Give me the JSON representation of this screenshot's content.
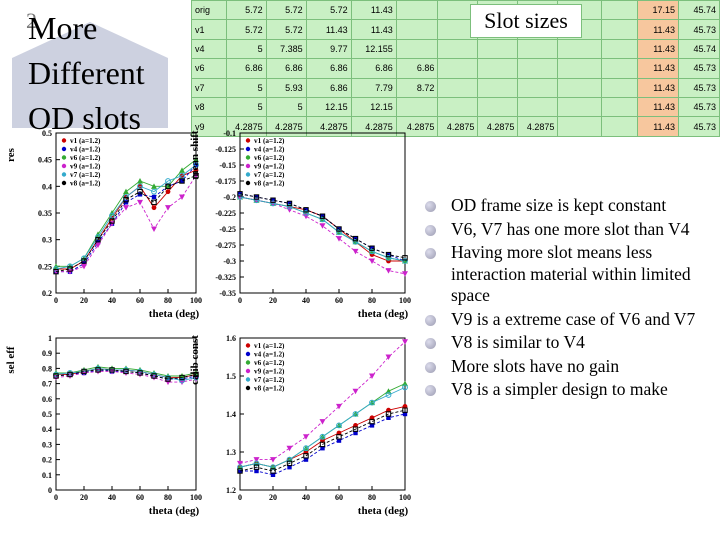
{
  "slide": {
    "number": "2",
    "title": "More Different OD slots"
  },
  "table": {
    "overlay_label": "Slot sizes",
    "rows": [
      {
        "name": "orig",
        "cells": [
          "5.72",
          "5.72",
          "5.72",
          "11.43",
          "",
          "",
          "",
          "",
          "",
          "",
          "17.15",
          "45.74"
        ]
      },
      {
        "name": "v1",
        "cells": [
          "5.72",
          "5.72",
          "11.43",
          "11.43",
          "",
          "",
          "",
          "",
          "",
          "",
          "11.43",
          "45.73"
        ]
      },
      {
        "name": "v4",
        "cells": [
          "5",
          "7.385",
          "9.77",
          "12.155",
          "",
          "",
          "",
          "",
          "",
          "",
          "11.43",
          "45.74"
        ]
      },
      {
        "name": "v6",
        "cells": [
          "6.86",
          "6.86",
          "6.86",
          "6.86",
          "6.86",
          "",
          "",
          "",
          "",
          "",
          "11.43",
          "45.73"
        ]
      },
      {
        "name": "v7",
        "cells": [
          "5",
          "5.93",
          "6.86",
          "7.79",
          "8.72",
          "",
          "",
          "",
          "",
          "",
          "11.43",
          "45.73"
        ]
      },
      {
        "name": "v8",
        "cells": [
          "5",
          "5",
          "12.15",
          "12.15",
          "",
          "",
          "",
          "",
          "",
          "",
          "11.43",
          "45.73"
        ]
      },
      {
        "name": "v9",
        "cells": [
          "4.2875",
          "4.2875",
          "4.2875",
          "4.2875",
          "4.2875",
          "4.2875",
          "4.2875",
          "4.2875",
          "",
          "",
          "11.43",
          "45.73"
        ]
      }
    ]
  },
  "bullets": [
    "OD frame size is kept constant",
    "V6, V7 has one more slot than V4",
    "Having more slot means less interaction material within limited space",
    "V9 is a extreme case of V6 and V7",
    "V8 is similar to V4",
    "More slots have no gain",
    "V8 is a simpler design to make"
  ],
  "legend": [
    "v1 (a=1.2)",
    "v4 (a=1.2)",
    "v6 (a=1.2)",
    "v9 (a=1.2)",
    "v7 (a=1.2)",
    "v8 (a=1.2)"
  ],
  "colors": {
    "v1": "#cc0000",
    "v4": "#0000cc",
    "v6": "#33aa33",
    "v9": "#cc22cc",
    "v7": "#33aacc",
    "v8": "#000000",
    "table_bg": "#c9f0c4",
    "table_hl": "#f7c79e"
  },
  "chart_data": [
    {
      "type": "line",
      "ylabel": "res",
      "xlabel": "theta (deg)",
      "ylim": [
        0.2,
        0.5
      ],
      "yticks": [
        "0.2",
        "0.25",
        "0.3",
        "0.35",
        "0.4",
        "0.45",
        "0.5"
      ],
      "xticks": [
        "0",
        "20",
        "40",
        "60",
        "80",
        "100"
      ],
      "x": [
        0,
        10,
        20,
        30,
        40,
        50,
        60,
        70,
        80,
        90,
        100
      ],
      "series": [
        {
          "name": "v1 (a=1.2)",
          "values": [
            0.245,
            0.245,
            0.26,
            0.3,
            0.34,
            0.38,
            0.4,
            0.36,
            0.39,
            0.42,
            0.43
          ]
        },
        {
          "name": "v4 (a=1.2)",
          "values": [
            0.24,
            0.24,
            0.255,
            0.295,
            0.33,
            0.37,
            0.385,
            0.38,
            0.4,
            0.41,
            0.44
          ]
        },
        {
          "name": "v6 (a=1.2)",
          "values": [
            0.25,
            0.25,
            0.265,
            0.31,
            0.35,
            0.39,
            0.41,
            0.4,
            0.4,
            0.43,
            0.45
          ]
        },
        {
          "name": "v9 (a=1.2)",
          "values": [
            0.24,
            0.24,
            0.25,
            0.29,
            0.33,
            0.36,
            0.37,
            0.32,
            0.36,
            0.38,
            0.42
          ]
        },
        {
          "name": "v7 (a=1.2)",
          "values": [
            0.245,
            0.25,
            0.265,
            0.305,
            0.345,
            0.38,
            0.4,
            0.39,
            0.41,
            0.42,
            0.44
          ]
        },
        {
          "name": "v8 (a=1.2)",
          "values": [
            0.24,
            0.245,
            0.26,
            0.3,
            0.335,
            0.375,
            0.39,
            0.37,
            0.4,
            0.41,
            0.42
          ]
        }
      ]
    },
    {
      "type": "line",
      "ylabel": "mean shift",
      "xlabel": "theta (deg)",
      "ylim": [
        -0.35,
        -0.1
      ],
      "yticks": [
        "-0.1",
        "-0.125",
        "-0.15",
        "-0.175",
        "-0.2",
        "-0.225",
        "-0.25",
        "-0.275",
        "-0.3",
        "-0.325",
        "-0.35"
      ],
      "xticks": [
        "0",
        "20",
        "40",
        "60",
        "80",
        "100"
      ],
      "x": [
        0,
        10,
        20,
        30,
        40,
        50,
        60,
        70,
        80,
        90,
        100
      ],
      "series": [
        {
          "name": "v1 (a=1.2)",
          "values": [
            -0.2,
            -0.205,
            -0.21,
            -0.215,
            -0.22,
            -0.23,
            -0.25,
            -0.27,
            -0.29,
            -0.3,
            -0.3
          ]
        },
        {
          "name": "v4 (a=1.2)",
          "values": [
            -0.195,
            -0.2,
            -0.205,
            -0.21,
            -0.22,
            -0.23,
            -0.25,
            -0.265,
            -0.28,
            -0.29,
            -0.3
          ]
        },
        {
          "name": "v6 (a=1.2)",
          "values": [
            -0.2,
            -0.205,
            -0.21,
            -0.215,
            -0.225,
            -0.235,
            -0.255,
            -0.27,
            -0.285,
            -0.295,
            -0.3
          ]
        },
        {
          "name": "v9 (a=1.2)",
          "values": [
            -0.2,
            -0.205,
            -0.21,
            -0.22,
            -0.23,
            -0.245,
            -0.265,
            -0.285,
            -0.3,
            -0.315,
            -0.32
          ]
        },
        {
          "name": "v7 (a=1.2)",
          "values": [
            -0.2,
            -0.205,
            -0.21,
            -0.215,
            -0.225,
            -0.235,
            -0.255,
            -0.27,
            -0.285,
            -0.295,
            -0.3
          ]
        },
        {
          "name": "v8 (a=1.2)",
          "values": [
            -0.195,
            -0.2,
            -0.205,
            -0.21,
            -0.22,
            -0.23,
            -0.25,
            -0.265,
            -0.28,
            -0.29,
            -0.295
          ]
        }
      ]
    },
    {
      "type": "line",
      "ylabel": "sel eff",
      "xlabel": "theta (deg)",
      "ylim": [
        0,
        1
      ],
      "yticks": [
        "0",
        "0.1",
        "0.2",
        "0.3",
        "0.4",
        "0.5",
        "0.6",
        "0.7",
        "0.8",
        "0.9",
        "1"
      ],
      "xticks": [
        "0",
        "20",
        "40",
        "60",
        "80",
        "100"
      ],
      "x": [
        0,
        10,
        20,
        30,
        40,
        50,
        60,
        70,
        80,
        90,
        100
      ],
      "series": [
        {
          "name": "v1 (a=1.2)",
          "values": [
            0.76,
            0.76,
            0.78,
            0.8,
            0.79,
            0.79,
            0.78,
            0.76,
            0.74,
            0.74,
            0.76
          ]
        },
        {
          "name": "v4 (a=1.2)",
          "values": [
            0.75,
            0.76,
            0.77,
            0.79,
            0.78,
            0.78,
            0.77,
            0.75,
            0.73,
            0.73,
            0.75
          ]
        },
        {
          "name": "v6 (a=1.2)",
          "values": [
            0.77,
            0.77,
            0.79,
            0.81,
            0.8,
            0.8,
            0.79,
            0.77,
            0.75,
            0.75,
            0.77
          ]
        },
        {
          "name": "v9 (a=1.2)",
          "values": [
            0.74,
            0.75,
            0.77,
            0.78,
            0.78,
            0.77,
            0.76,
            0.74,
            0.71,
            0.71,
            0.73
          ]
        },
        {
          "name": "v7 (a=1.2)",
          "values": [
            0.76,
            0.77,
            0.78,
            0.8,
            0.79,
            0.79,
            0.78,
            0.76,
            0.74,
            0.72,
            0.74
          ]
        },
        {
          "name": "v8 (a=1.2)",
          "values": [
            0.75,
            0.76,
            0.78,
            0.79,
            0.79,
            0.78,
            0.77,
            0.75,
            0.73,
            0.74,
            0.76
          ]
        }
      ]
    },
    {
      "type": "line",
      "ylabel": "calib const",
      "xlabel": "theta (deg)",
      "ylim": [
        1.2,
        1.6
      ],
      "yticks": [
        "1.2",
        "1.3",
        "1.4",
        "1.5",
        "1.6"
      ],
      "xticks": [
        "0",
        "20",
        "40",
        "60",
        "80",
        "100"
      ],
      "x": [
        0,
        10,
        20,
        30,
        40,
        50,
        60,
        70,
        80,
        90,
        100
      ],
      "series": [
        {
          "name": "v1 (a=1.2)",
          "values": [
            1.26,
            1.27,
            1.26,
            1.28,
            1.3,
            1.33,
            1.35,
            1.37,
            1.39,
            1.41,
            1.42
          ]
        },
        {
          "name": "v4 (a=1.2)",
          "values": [
            1.25,
            1.25,
            1.24,
            1.26,
            1.28,
            1.31,
            1.33,
            1.35,
            1.37,
            1.39,
            1.4
          ]
        },
        {
          "name": "v6 (a=1.2)",
          "values": [
            1.26,
            1.27,
            1.26,
            1.28,
            1.31,
            1.34,
            1.37,
            1.4,
            1.43,
            1.46,
            1.48
          ]
        },
        {
          "name": "v9 (a=1.2)",
          "values": [
            1.27,
            1.28,
            1.28,
            1.31,
            1.34,
            1.38,
            1.42,
            1.46,
            1.5,
            1.55,
            1.59
          ]
        },
        {
          "name": "v7 (a=1.2)",
          "values": [
            1.26,
            1.27,
            1.26,
            1.28,
            1.31,
            1.34,
            1.37,
            1.4,
            1.43,
            1.45,
            1.47
          ]
        },
        {
          "name": "v8 (a=1.2)",
          "values": [
            1.25,
            1.26,
            1.25,
            1.27,
            1.29,
            1.32,
            1.34,
            1.36,
            1.38,
            1.4,
            1.41
          ]
        }
      ]
    }
  ]
}
